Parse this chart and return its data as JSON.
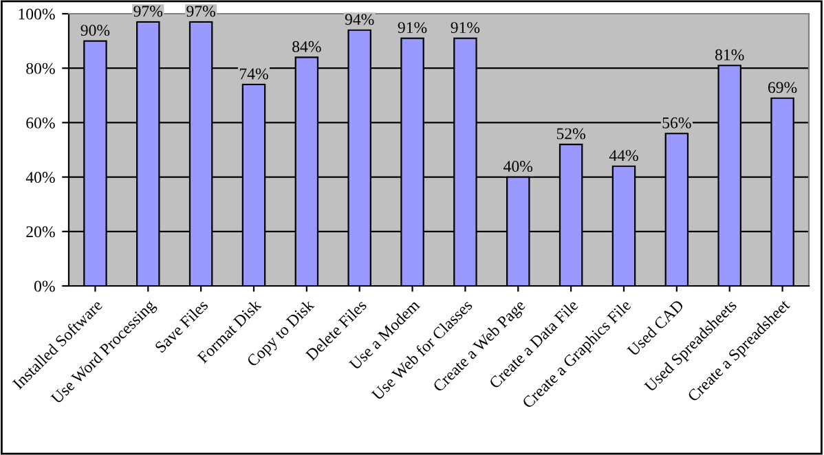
{
  "chart_data": {
    "type": "bar",
    "categories": [
      "Installed Software",
      "Use Word Processing",
      "Save Files",
      "Format Disk",
      "Copy to Disk",
      "Delete Files",
      "Use a Modem",
      "Use Web for Classes",
      "Create a Web Page",
      "Create a Data File",
      "Create a Graphics File",
      "Used CAD",
      "Used Spreadsheets",
      "Create a Spreadsheet"
    ],
    "values": [
      90,
      97,
      97,
      74,
      84,
      94,
      91,
      91,
      40,
      52,
      44,
      56,
      81,
      69
    ],
    "value_labels": [
      "90%",
      "97%",
      "97%",
      "74%",
      "84%",
      "94%",
      "91%",
      "91%",
      "40%",
      "52%",
      "44%",
      "56%",
      "81%",
      "69%"
    ],
    "color": "#9999ff",
    "ylim": [
      0,
      100
    ],
    "yticks": [
      {
        "value": 0,
        "label": "0%"
      },
      {
        "value": 20,
        "label": "20%"
      },
      {
        "value": 40,
        "label": "40%"
      },
      {
        "value": 60,
        "label": "60%"
      },
      {
        "value": 80,
        "label": "80%"
      },
      {
        "value": 100,
        "label": "100%"
      }
    ],
    "grid": "y"
  }
}
